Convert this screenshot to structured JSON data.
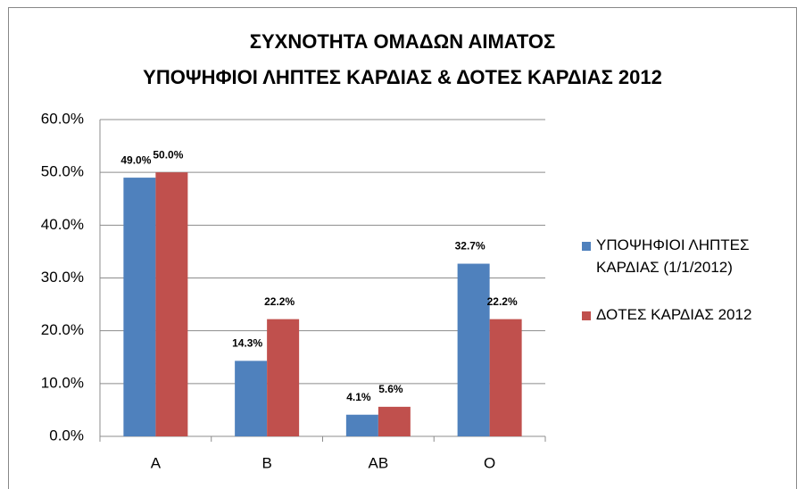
{
  "chart_data": {
    "type": "bar",
    "title": [
      "ΣΥΧΝΟΤΗΤΑ ΟΜΑΔΩΝ ΑΙΜΑΤΟΣ",
      "ΥΠΟΨΗΦΙΟΙ ΛΗΠΤΕΣ ΚΑΡΔΙΑΣ & ΔΟΤΕΣ ΚΑΡΔΙΑΣ 2012"
    ],
    "categories": [
      "A",
      "B",
      "AB",
      "O"
    ],
    "series": [
      {
        "name": "ΥΠΟΨΗΦΙΟΙ ΛΗΠΤΕΣ ΚΑΡΔΙΑΣ (1/1/2012)",
        "color": "#4f81bd",
        "values": [
          49.0,
          14.3,
          4.1,
          32.7
        ],
        "value_labels": [
          "49.0%",
          "14.3%",
          "4.1%",
          "32.7%"
        ]
      },
      {
        "name": "ΔΟΤΕΣ ΚΑΡΔΙΑΣ 2012",
        "color": "#c0504d",
        "values": [
          50.0,
          22.2,
          5.6,
          22.2
        ],
        "value_labels": [
          "50.0%",
          "22.2%",
          "5.6%",
          "22.2%"
        ]
      }
    ],
    "ylim": [
      0,
      60
    ],
    "yticks": [
      {
        "value": 0,
        "label": "0.0%"
      },
      {
        "value": 10,
        "label": "10.0%"
      },
      {
        "value": 20,
        "label": "20.0%"
      },
      {
        "value": 30,
        "label": "30.0%"
      },
      {
        "value": 40,
        "label": "40.0%"
      },
      {
        "value": 50,
        "label": "50.0%"
      },
      {
        "value": 60,
        "label": "60.0%"
      }
    ],
    "grid": true,
    "legend": "right"
  }
}
